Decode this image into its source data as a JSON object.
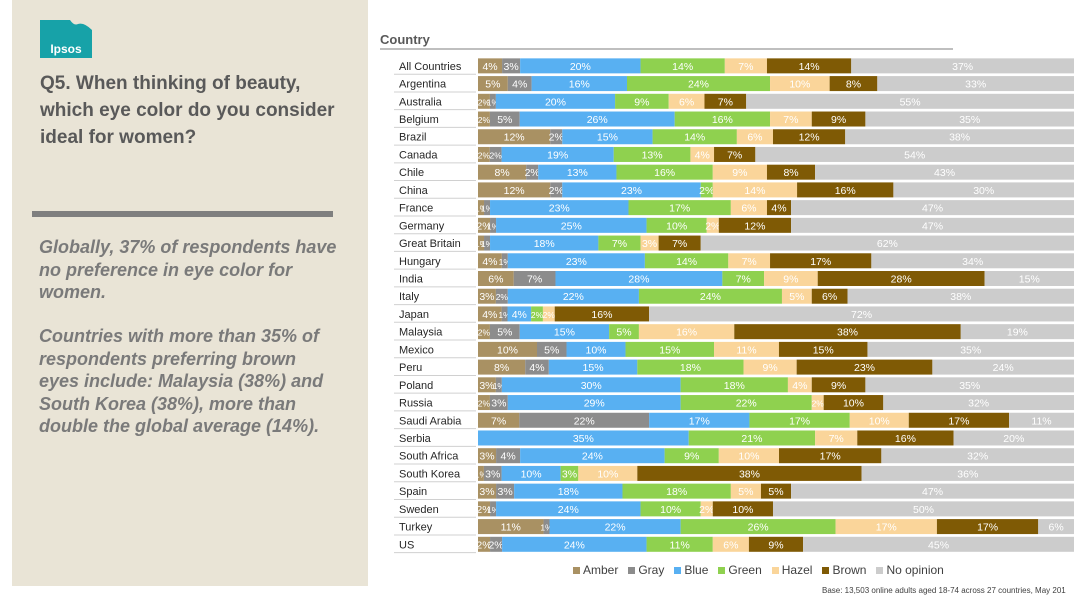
{
  "logo_text": "Ipsos",
  "question": "Q5. When thinking of beauty, which eye color do you consider ideal for women?",
  "insights": [
    "Globally, 37% of respondents have no preference in eye color for women.",
    "Countries with more than 35% of respondents preferring brown eyes include: Malaysia (38%) and South Korea (38%), more than double the global average (14%)."
  ],
  "colors": {
    "panel": "#e9e4d6",
    "brand": "#17a2a8",
    "label_light": "#ffffff",
    "label_dark": "#404040"
  },
  "footnote": "Base: 13,503 online adults aged 18-74 across 27 countries, May 201",
  "chart_data": {
    "type": "bar",
    "orientation": "horizontal",
    "stacked": true,
    "xlabel": "",
    "ylabel": "Country",
    "xlim": [
      0,
      100
    ],
    "legend_position": "bottom",
    "categories": [
      "All Countries",
      "Argentina",
      "Australia",
      "Belgium",
      "Brazil",
      "Canada",
      "Chile",
      "China",
      "France",
      "Germany",
      "Great Britain",
      "Hungary",
      "India",
      "Italy",
      "Japan",
      "Malaysia",
      "Mexico",
      "Peru",
      "Poland",
      "Russia",
      "Saudi Arabia",
      "Serbia",
      "South Africa",
      "South Korea",
      "Spain",
      "Sweden",
      "Turkey",
      "US"
    ],
    "series": [
      {
        "name": "Amber",
        "color": "#a99163",
        "values": [
          4,
          5,
          2,
          2,
          12,
          2,
          8,
          12,
          1,
          2,
          1,
          4,
          6,
          3,
          4,
          2,
          10,
          8,
          3,
          2,
          7,
          0,
          3,
          1,
          3,
          2,
          11,
          2
        ]
      },
      {
        "name": "Gray",
        "color": "#8c8c8c",
        "values": [
          3,
          4,
          1,
          5,
          2,
          2,
          2,
          2,
          1,
          1,
          1,
          1,
          7,
          2,
          1,
          5,
          5,
          4,
          1,
          3,
          22,
          0,
          4,
          3,
          3,
          1,
          1,
          2
        ]
      },
      {
        "name": "Blue",
        "color": "#58b0f2",
        "values": [
          20,
          16,
          20,
          26,
          15,
          19,
          13,
          23,
          23,
          25,
          18,
          23,
          28,
          22,
          4,
          15,
          10,
          15,
          30,
          29,
          17,
          35,
          24,
          10,
          18,
          24,
          22,
          24
        ]
      },
      {
        "name": "Green",
        "color": "#8fd14f",
        "values": [
          14,
          24,
          9,
          16,
          14,
          13,
          16,
          2,
          17,
          10,
          7,
          14,
          7,
          24,
          2,
          5,
          15,
          18,
          18,
          22,
          17,
          21,
          9,
          3,
          18,
          10,
          26,
          11
        ]
      },
      {
        "name": "Hazel",
        "color": "#fad59a",
        "values": [
          7,
          10,
          6,
          7,
          6,
          4,
          9,
          14,
          6,
          2,
          3,
          7,
          9,
          5,
          2,
          16,
          11,
          9,
          4,
          2,
          10,
          7,
          10,
          10,
          5,
          2,
          17,
          6
        ]
      },
      {
        "name": "Brown",
        "color": "#7f5a05",
        "values": [
          14,
          8,
          7,
          9,
          12,
          7,
          8,
          16,
          4,
          12,
          7,
          17,
          28,
          6,
          16,
          38,
          15,
          23,
          9,
          10,
          17,
          16,
          17,
          38,
          5,
          10,
          17,
          9
        ]
      },
      {
        "name": "No opinion",
        "color": "#cccccc",
        "values": [
          37,
          33,
          55,
          35,
          38,
          54,
          43,
          30,
          47,
          47,
          62,
          34,
          15,
          38,
          72,
          19,
          35,
          24,
          35,
          32,
          11,
          20,
          32,
          36,
          47,
          50,
          6,
          45
        ]
      }
    ]
  }
}
